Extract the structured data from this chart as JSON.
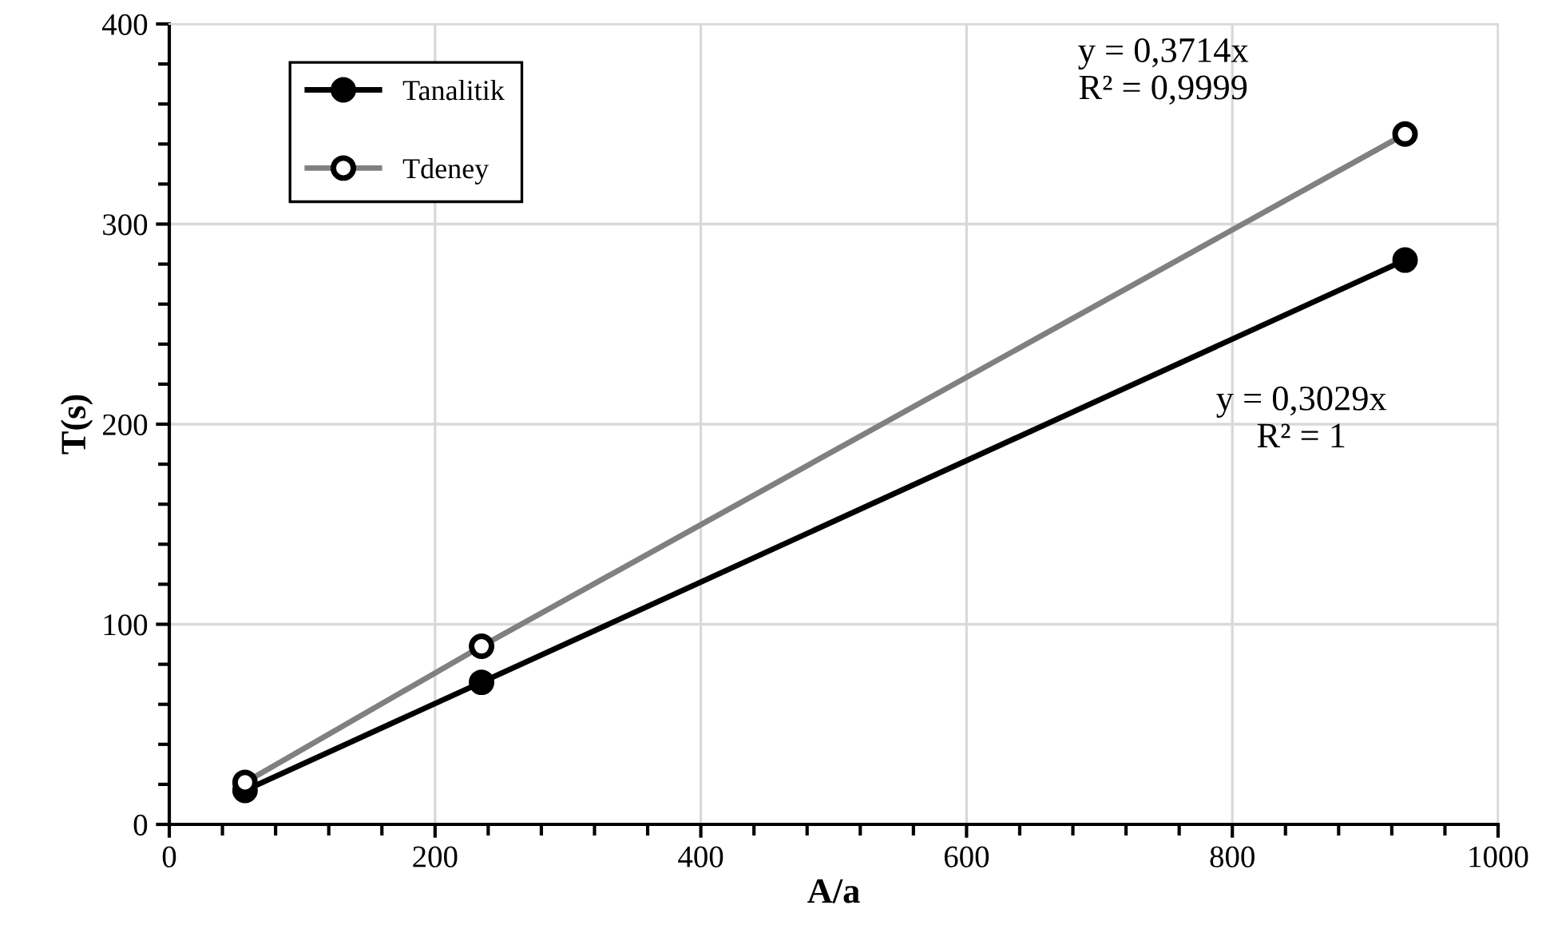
{
  "chart_data": {
    "type": "line",
    "xlabel": "A/a",
    "ylabel": "T(s)",
    "x": [
      57,
      235,
      930
    ],
    "series": [
      {
        "name": "Tanalitik",
        "color": "#000000",
        "values": [
          17,
          71,
          282
        ],
        "marker": "circle"
      },
      {
        "name": "Tdeney",
        "color": "#808080",
        "values": [
          21,
          89,
          345
        ],
        "marker": "circle"
      }
    ],
    "xlim": [
      0,
      1000
    ],
    "xticks": [
      0,
      200,
      400,
      600,
      800,
      1000
    ],
    "ylim": [
      0,
      400
    ],
    "yticks": [
      0,
      100,
      200,
      300,
      400
    ],
    "grid": true,
    "legend": "top left",
    "annotations": [
      "y = 0,3714x\nR² = 0,9999",
      "y = 0,3029x\nR² = 1"
    ]
  }
}
